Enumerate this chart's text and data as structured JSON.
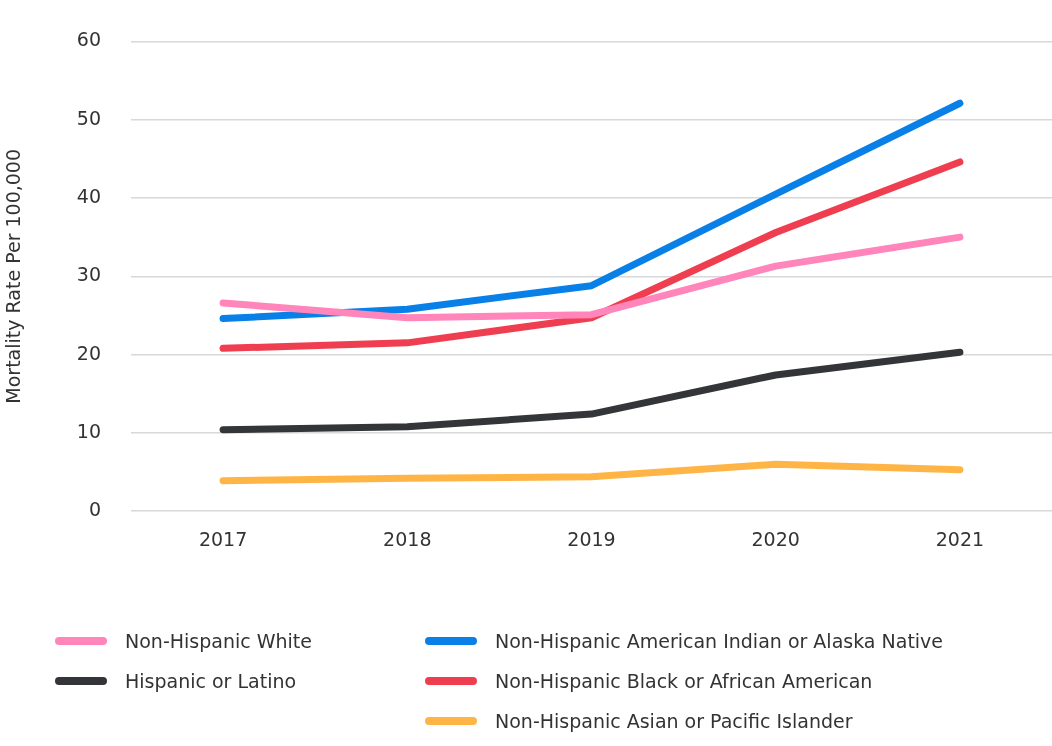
{
  "chart_data": {
    "type": "line",
    "ylabel": "Mortality Rate Per 100,000",
    "categories": [
      "2017",
      "2018",
      "2019",
      "2020",
      "2021"
    ],
    "ylim": [
      0,
      60
    ],
    "yticks": [
      0,
      10,
      20,
      30,
      40,
      50,
      60
    ],
    "grid": "y",
    "legend": "bottom",
    "marker": "none",
    "line_style": "solid",
    "series": [
      {
        "name": "Non-Hispanic White",
        "color": "#ff85bb",
        "values": [
          26.6,
          24.7,
          25.1,
          31.3,
          35.0
        ]
      },
      {
        "name": "Hispanic or Latino",
        "color": "#333538",
        "values": [
          10.4,
          10.8,
          12.4,
          17.4,
          20.3
        ]
      },
      {
        "name": "Non-Hispanic American Indian or Alaska Native",
        "color": "#0880e8",
        "values": [
          24.6,
          25.8,
          28.8,
          40.5,
          52.1
        ]
      },
      {
        "name": "Non-Hispanic Black or African American",
        "color": "#ef3e50",
        "values": [
          20.8,
          21.5,
          24.7,
          35.6,
          44.6
        ]
      },
      {
        "name": "Non-Hispanic Asian or Pacific Islander",
        "color": "#ffb545",
        "values": [
          3.9,
          4.2,
          4.4,
          6.0,
          5.3
        ]
      }
    ]
  }
}
